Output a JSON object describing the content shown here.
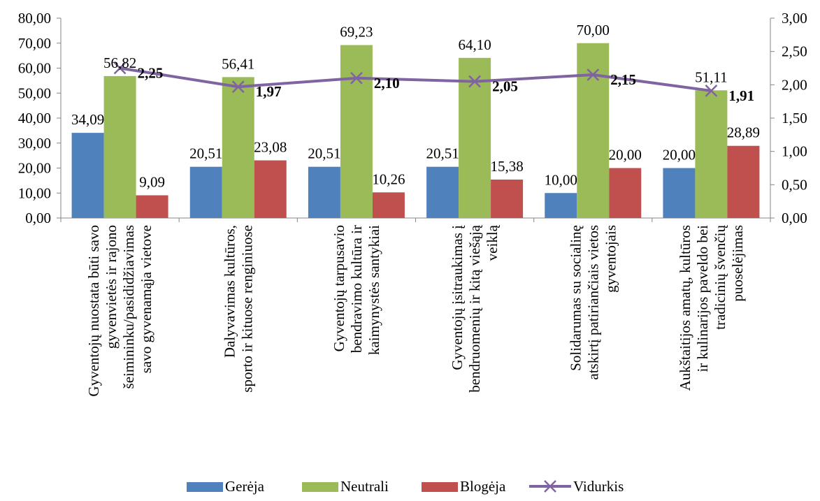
{
  "chart_data": {
    "type": "bar",
    "categories": [
      [
        "Gyventojų nuostata būti savo",
        "gyvenvietės ir rajono",
        "šeimininku/pasididžiavimas",
        "savo gyvenamąja vietove"
      ],
      [
        "Dalyvavimas kultūros,",
        "sporto ir kituose renginiuose"
      ],
      [
        "Gyventojų tarpusavio",
        "bendravimo kultūra ir",
        "kaimynystės santykiai"
      ],
      [
        "Gyventojų įsitraukimas į",
        "bendruomenių ir kitą viešąją",
        "veiklą"
      ],
      [
        "Solidarumas su socialinę",
        "atskirtį patiriančiais vietos",
        "gyventojais"
      ],
      [
        "Aukštaitijos amatų, kultūros",
        "ir kulinarijos paveldo bei",
        "tradicinių švenčių",
        "puoselėjimas"
      ]
    ],
    "series": [
      {
        "name": "Gerėja",
        "type": "bar",
        "color": "#4f81bd",
        "values": [
          34.09,
          20.51,
          20.51,
          20.51,
          10.0,
          20.0
        ],
        "labels": [
          "34,09",
          "20,51",
          "20,51",
          "20,51",
          "10,00",
          "20,00"
        ]
      },
      {
        "name": "Neutrali",
        "type": "bar",
        "color": "#9bbb59",
        "values": [
          56.82,
          56.41,
          69.23,
          64.1,
          70.0,
          51.11
        ],
        "labels": [
          "56,82",
          "56,41",
          "69,23",
          "64,10",
          "70,00",
          "51,11"
        ]
      },
      {
        "name": "Blogėja",
        "type": "bar",
        "color": "#c0504d",
        "values": [
          9.09,
          23.08,
          10.26,
          15.38,
          20.0,
          28.89
        ],
        "labels": [
          "9,09",
          "23,08",
          "10,26",
          "15,38",
          "20,00",
          "28,89"
        ]
      },
      {
        "name": "Vidurkis",
        "type": "line",
        "axis": "right",
        "color": "#8064a2",
        "marker": "x",
        "values": [
          2.25,
          1.97,
          2.1,
          2.05,
          2.15,
          1.91
        ],
        "labels": [
          "2,25",
          "1,97",
          "2,10",
          "2,05",
          "2,15",
          "1,91"
        ]
      }
    ],
    "y_left": {
      "min": 0,
      "max": 80,
      "ticks": [
        "0,00",
        "10,00",
        "20,00",
        "30,00",
        "40,00",
        "50,00",
        "60,00",
        "70,00",
        "80,00"
      ]
    },
    "y_right": {
      "min": 0,
      "max": 3,
      "ticks": [
        "0,00",
        "0,50",
        "1,00",
        "1,50",
        "2,00",
        "2,50",
        "3,00"
      ]
    },
    "title": "",
    "xlabel": "",
    "ylabel": "",
    "grid": false,
    "legend_position": "bottom"
  }
}
